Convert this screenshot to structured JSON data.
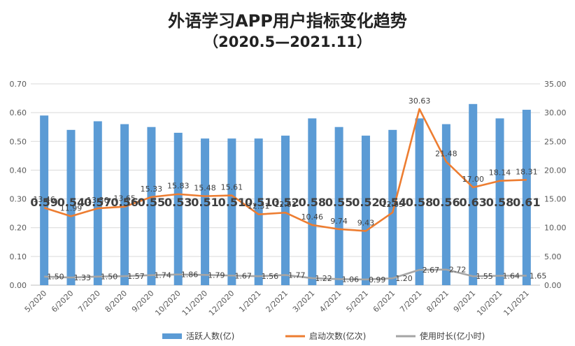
{
  "chart_data": {
    "type": "bar",
    "title": "外语学习APP用户指标变化趋势",
    "subtitle": "（2020.5—2021.11）",
    "categories": [
      "5/2020",
      "6/2020",
      "7/2020",
      "8/2020",
      "9/2020",
      "10/2020",
      "11/2020",
      "12/2020",
      "1/2021",
      "2/2021",
      "3/2021",
      "4/2021",
      "5/2021",
      "6/2021",
      "7/2021",
      "8/2021",
      "9/2021",
      "10/2021",
      "11/2021"
    ],
    "y_left": {
      "min": 0,
      "max": 0.7,
      "ticks": [
        "0.00",
        "0.10",
        "0.20",
        "0.30",
        "0.40",
        "0.50",
        "0.60",
        "0.70"
      ]
    },
    "y_right": {
      "min": 0,
      "max": 35,
      "ticks": [
        "0.00",
        "5.00",
        "10.00",
        "15.00",
        "20.00",
        "25.00",
        "30.00",
        "35.00"
      ]
    },
    "grid": true,
    "legend_position": "bottom",
    "series": [
      {
        "name": "活跃人数(亿)",
        "kind": "bar",
        "axis": "left",
        "color": "#5b9bd5",
        "values": [
          0.59,
          0.54,
          0.57,
          0.56,
          0.55,
          0.53,
          0.51,
          0.51,
          0.51,
          0.52,
          0.58,
          0.55,
          0.52,
          0.54,
          0.58,
          0.56,
          0.63,
          0.58,
          0.61
        ],
        "labels": [
          "0.59",
          "0.54",
          "0.57",
          "0.56",
          "0.55",
          "0.53",
          "0.51",
          "0.51",
          "0.51",
          "0.52",
          "0.58",
          "0.55",
          "0.52",
          "0.54",
          "0.58",
          "0.56",
          "0.63",
          "0.58",
          "0.61"
        ]
      },
      {
        "name": "启动次数(亿次)",
        "kind": "line",
        "axis": "right",
        "color": "#ed7d31",
        "values": [
          13.46,
          11.99,
          13.36,
          13.65,
          15.33,
          15.83,
          15.48,
          15.61,
          12.31,
          12.61,
          10.46,
          9.74,
          9.43,
          12.65,
          30.63,
          21.48,
          17.0,
          18.14,
          18.31
        ],
        "labels": [
          "13.46",
          "11.99",
          "13.36",
          "13.65",
          "15.33",
          "15.83",
          "15.48",
          "15.61",
          "12.31",
          "12.61",
          "10.46",
          "9.74",
          "9.43",
          "12.65",
          "30.63",
          "21.48",
          "17.00",
          "18.14",
          "18.31"
        ]
      },
      {
        "name": "使用时长(亿小时)",
        "kind": "line",
        "axis": "right",
        "color": "#a5a5a5",
        "values": [
          1.5,
          1.33,
          1.5,
          1.57,
          1.74,
          1.86,
          1.79,
          1.67,
          1.56,
          1.77,
          1.22,
          1.06,
          0.99,
          1.2,
          2.67,
          2.72,
          1.55,
          1.64,
          1.65
        ],
        "labels": [
          "1.50",
          "1.33",
          "1.50",
          "1.57",
          "1.74",
          "1.86",
          "1.79",
          "1.67",
          "1.56",
          "1.77",
          "1.22",
          "1.06",
          "0.99",
          "1.20",
          "2.67",
          "2.72",
          "1.55",
          "1.64",
          "1.65"
        ]
      }
    ]
  }
}
